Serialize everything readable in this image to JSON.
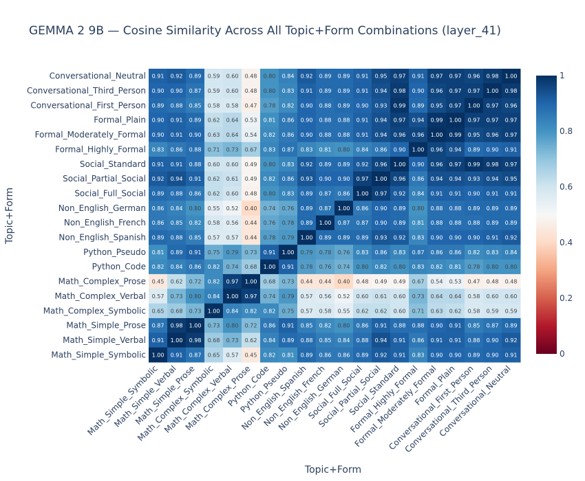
{
  "chart_data": {
    "type": "heatmap",
    "title": "GEMMA 2 9B — Cosine Similarity Across All Topic+Form Combinations (layer_41)",
    "xlabel": "Topic+Form",
    "ylabel": "Topic+Form",
    "x_categories": [
      "Math_Simple_Symbolic",
      "Math_Simple_Verbal",
      "Math_Simple_Prose",
      "Math_Complex_Symbolic",
      "Math_Complex_Verbal",
      "Math_Complex_Prose",
      "Python_Code",
      "Python_Pseudo",
      "Non_English_Spanish",
      "Non_English_French",
      "Non_English_German",
      "Social_Full_Social",
      "Social_Partial_Social",
      "Social_Standard",
      "Formal_Highly_Formal",
      "Formal_Moderately_Formal",
      "Formal_Plain",
      "Conversational_First_Person",
      "Conversational_Third_Person",
      "Conversational_Neutral"
    ],
    "y_categories_top_to_bottom": [
      "Conversational_Neutral",
      "Conversational_Third_Person",
      "Conversational_First_Person",
      "Formal_Plain",
      "Formal_Moderately_Formal",
      "Formal_Highly_Formal",
      "Social_Standard",
      "Social_Partial_Social",
      "Social_Full_Social",
      "Non_English_German",
      "Non_English_French",
      "Non_English_Spanish",
      "Python_Pseudo",
      "Python_Code",
      "Math_Complex_Prose",
      "Math_Complex_Verbal",
      "Math_Complex_Symbolic",
      "Math_Simple_Prose",
      "Math_Simple_Verbal",
      "Math_Simple_Symbolic"
    ],
    "z_top_to_bottom": [
      [
        0.91,
        0.92,
        0.89,
        0.59,
        0.6,
        0.48,
        0.8,
        0.84,
        0.92,
        0.89,
        0.89,
        0.91,
        0.95,
        0.97,
        0.91,
        0.97,
        0.97,
        0.96,
        0.98,
        1.0
      ],
      [
        0.9,
        0.9,
        0.87,
        0.59,
        0.6,
        0.48,
        0.8,
        0.83,
        0.91,
        0.89,
        0.89,
        0.91,
        0.94,
        0.98,
        0.9,
        0.96,
        0.97,
        0.97,
        1.0,
        0.98
      ],
      [
        0.89,
        0.88,
        0.85,
        0.58,
        0.58,
        0.47,
        0.78,
        0.82,
        0.9,
        0.88,
        0.89,
        0.9,
        0.93,
        0.99,
        0.89,
        0.95,
        0.97,
        1.0,
        0.97,
        0.96
      ],
      [
        0.9,
        0.91,
        0.89,
        0.62,
        0.64,
        0.53,
        0.81,
        0.86,
        0.9,
        0.88,
        0.88,
        0.91,
        0.94,
        0.97,
        0.94,
        0.99,
        1.0,
        0.97,
        0.97,
        0.97
      ],
      [
        0.9,
        0.91,
        0.9,
        0.63,
        0.64,
        0.54,
        0.82,
        0.86,
        0.9,
        0.88,
        0.88,
        0.91,
        0.94,
        0.96,
        0.96,
        1.0,
        0.99,
        0.95,
        0.96,
        0.97
      ],
      [
        0.83,
        0.86,
        0.88,
        0.71,
        0.73,
        0.67,
        0.83,
        0.87,
        0.83,
        0.81,
        0.8,
        0.84,
        0.86,
        0.9,
        1.0,
        0.96,
        0.94,
        0.89,
        0.9,
        0.91
      ],
      [
        0.91,
        0.91,
        0.88,
        0.6,
        0.6,
        0.49,
        0.8,
        0.83,
        0.92,
        0.89,
        0.89,
        0.92,
        0.96,
        1.0,
        0.9,
        0.96,
        0.97,
        0.99,
        0.98,
        0.97
      ],
      [
        0.92,
        0.94,
        0.91,
        0.62,
        0.61,
        0.49,
        0.82,
        0.86,
        0.93,
        0.9,
        0.9,
        0.97,
        1.0,
        0.96,
        0.86,
        0.94,
        0.94,
        0.93,
        0.94,
        0.95
      ],
      [
        0.89,
        0.88,
        0.86,
        0.62,
        0.6,
        0.48,
        0.8,
        0.83,
        0.89,
        0.87,
        0.86,
        1.0,
        0.97,
        0.92,
        0.84,
        0.91,
        0.91,
        0.9,
        0.91,
        0.91
      ],
      [
        0.86,
        0.84,
        0.8,
        0.55,
        0.52,
        0.4,
        0.74,
        0.76,
        0.89,
        0.87,
        1.0,
        0.86,
        0.9,
        0.89,
        0.8,
        0.88,
        0.88,
        0.89,
        0.89,
        0.89
      ],
      [
        0.86,
        0.85,
        0.82,
        0.58,
        0.56,
        0.44,
        0.76,
        0.78,
        0.89,
        1.0,
        0.87,
        0.87,
        0.9,
        0.89,
        0.81,
        0.88,
        0.88,
        0.88,
        0.89,
        0.89
      ],
      [
        0.89,
        0.88,
        0.85,
        0.57,
        0.57,
        0.44,
        0.78,
        0.79,
        1.0,
        0.89,
        0.89,
        0.89,
        0.93,
        0.92,
        0.83,
        0.9,
        0.9,
        0.9,
        0.91,
        0.92
      ],
      [
        0.81,
        0.89,
        0.91,
        0.75,
        0.79,
        0.73,
        0.91,
        1.0,
        0.79,
        0.78,
        0.76,
        0.83,
        0.86,
        0.83,
        0.87,
        0.86,
        0.86,
        0.82,
        0.83,
        0.84
      ],
      [
        0.82,
        0.84,
        0.86,
        0.82,
        0.74,
        0.68,
        1.0,
        0.91,
        0.78,
        0.76,
        0.74,
        0.8,
        0.82,
        0.8,
        0.83,
        0.82,
        0.81,
        0.78,
        0.8,
        0.8
      ],
      [
        0.45,
        0.62,
        0.72,
        0.82,
        0.97,
        1.0,
        0.68,
        0.73,
        0.44,
        0.44,
        0.4,
        0.48,
        0.49,
        0.49,
        0.67,
        0.54,
        0.53,
        0.47,
        0.48,
        0.48
      ],
      [
        0.57,
        0.73,
        0.8,
        0.84,
        1.0,
        0.97,
        0.74,
        0.79,
        0.57,
        0.56,
        0.52,
        0.6,
        0.61,
        0.6,
        0.73,
        0.64,
        0.64,
        0.58,
        0.6,
        0.6
      ],
      [
        0.65,
        0.68,
        0.73,
        1.0,
        0.84,
        0.82,
        0.82,
        0.75,
        0.57,
        0.58,
        0.55,
        0.62,
        0.62,
        0.6,
        0.71,
        0.63,
        0.62,
        0.58,
        0.59,
        0.59
      ],
      [
        0.87,
        0.98,
        1.0,
        0.73,
        0.8,
        0.72,
        0.86,
        0.91,
        0.85,
        0.82,
        0.8,
        0.86,
        0.91,
        0.88,
        0.88,
        0.9,
        0.91,
        0.85,
        0.87,
        0.89
      ],
      [
        0.91,
        1.0,
        0.98,
        0.68,
        0.73,
        0.62,
        0.84,
        0.89,
        0.88,
        0.85,
        0.84,
        0.88,
        0.94,
        0.91,
        0.86,
        0.91,
        0.91,
        0.88,
        0.9,
        0.92
      ],
      [
        1.0,
        0.91,
        0.87,
        0.65,
        0.57,
        0.45,
        0.82,
        0.81,
        0.89,
        0.86,
        0.86,
        0.89,
        0.92,
        0.91,
        0.83,
        0.9,
        0.9,
        0.89,
        0.9,
        0.91
      ]
    ],
    "zmin": 0,
    "zmax": 1,
    "colorscale": "RdBu",
    "colorbar_ticks": [
      "0",
      "0.2",
      "0.4",
      "0.6",
      "0.8",
      "1"
    ],
    "colorbar_tick_values": [
      0,
      0.2,
      0.4,
      0.6,
      0.8,
      1
    ]
  }
}
